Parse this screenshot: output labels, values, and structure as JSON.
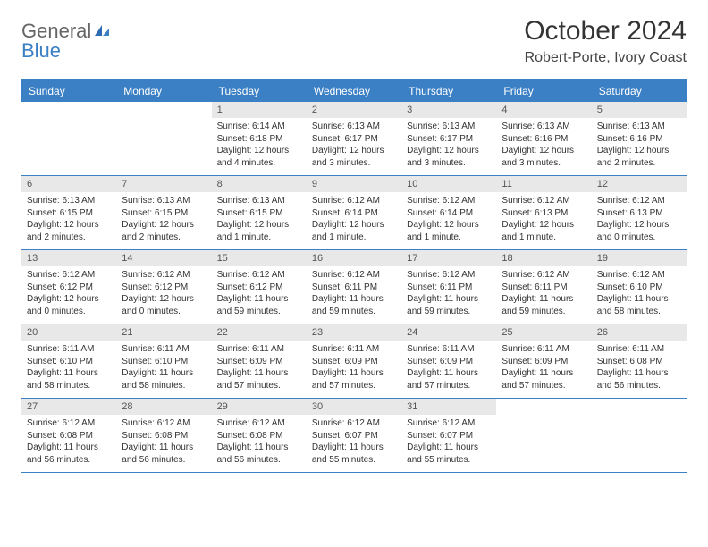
{
  "logo": {
    "general": "General",
    "blue": "Blue"
  },
  "title": "October 2024",
  "location": "Robert-Porte, Ivory Coast",
  "colors": {
    "header_bg": "#3b7fc4",
    "header_text": "#ffffff",
    "daynum_bg": "#e8e8e8",
    "border": "#3b7fc4",
    "text": "#333333",
    "logo_gray": "#666666",
    "logo_blue": "#3b7fc4",
    "background": "#ffffff"
  },
  "typography": {
    "title_fontsize": 30,
    "location_fontsize": 16,
    "dayheader_fontsize": 12,
    "daynum_fontsize": 11,
    "cell_fontsize": 10
  },
  "layout": {
    "columns": 7,
    "rows": 5
  },
  "day_names": [
    "Sunday",
    "Monday",
    "Tuesday",
    "Wednesday",
    "Thursday",
    "Friday",
    "Saturday"
  ],
  "weeks": [
    [
      null,
      null,
      {
        "n": "1",
        "sr": "Sunrise: 6:14 AM",
        "ss": "Sunset: 6:18 PM",
        "dl1": "Daylight: 12 hours",
        "dl2": "and 4 minutes."
      },
      {
        "n": "2",
        "sr": "Sunrise: 6:13 AM",
        "ss": "Sunset: 6:17 PM",
        "dl1": "Daylight: 12 hours",
        "dl2": "and 3 minutes."
      },
      {
        "n": "3",
        "sr": "Sunrise: 6:13 AM",
        "ss": "Sunset: 6:17 PM",
        "dl1": "Daylight: 12 hours",
        "dl2": "and 3 minutes."
      },
      {
        "n": "4",
        "sr": "Sunrise: 6:13 AM",
        "ss": "Sunset: 6:16 PM",
        "dl1": "Daylight: 12 hours",
        "dl2": "and 3 minutes."
      },
      {
        "n": "5",
        "sr": "Sunrise: 6:13 AM",
        "ss": "Sunset: 6:16 PM",
        "dl1": "Daylight: 12 hours",
        "dl2": "and 2 minutes."
      }
    ],
    [
      {
        "n": "6",
        "sr": "Sunrise: 6:13 AM",
        "ss": "Sunset: 6:15 PM",
        "dl1": "Daylight: 12 hours",
        "dl2": "and 2 minutes."
      },
      {
        "n": "7",
        "sr": "Sunrise: 6:13 AM",
        "ss": "Sunset: 6:15 PM",
        "dl1": "Daylight: 12 hours",
        "dl2": "and 2 minutes."
      },
      {
        "n": "8",
        "sr": "Sunrise: 6:13 AM",
        "ss": "Sunset: 6:15 PM",
        "dl1": "Daylight: 12 hours",
        "dl2": "and 1 minute."
      },
      {
        "n": "9",
        "sr": "Sunrise: 6:12 AM",
        "ss": "Sunset: 6:14 PM",
        "dl1": "Daylight: 12 hours",
        "dl2": "and 1 minute."
      },
      {
        "n": "10",
        "sr": "Sunrise: 6:12 AM",
        "ss": "Sunset: 6:14 PM",
        "dl1": "Daylight: 12 hours",
        "dl2": "and 1 minute."
      },
      {
        "n": "11",
        "sr": "Sunrise: 6:12 AM",
        "ss": "Sunset: 6:13 PM",
        "dl1": "Daylight: 12 hours",
        "dl2": "and 1 minute."
      },
      {
        "n": "12",
        "sr": "Sunrise: 6:12 AM",
        "ss": "Sunset: 6:13 PM",
        "dl1": "Daylight: 12 hours",
        "dl2": "and 0 minutes."
      }
    ],
    [
      {
        "n": "13",
        "sr": "Sunrise: 6:12 AM",
        "ss": "Sunset: 6:12 PM",
        "dl1": "Daylight: 12 hours",
        "dl2": "and 0 minutes."
      },
      {
        "n": "14",
        "sr": "Sunrise: 6:12 AM",
        "ss": "Sunset: 6:12 PM",
        "dl1": "Daylight: 12 hours",
        "dl2": "and 0 minutes."
      },
      {
        "n": "15",
        "sr": "Sunrise: 6:12 AM",
        "ss": "Sunset: 6:12 PM",
        "dl1": "Daylight: 11 hours",
        "dl2": "and 59 minutes."
      },
      {
        "n": "16",
        "sr": "Sunrise: 6:12 AM",
        "ss": "Sunset: 6:11 PM",
        "dl1": "Daylight: 11 hours",
        "dl2": "and 59 minutes."
      },
      {
        "n": "17",
        "sr": "Sunrise: 6:12 AM",
        "ss": "Sunset: 6:11 PM",
        "dl1": "Daylight: 11 hours",
        "dl2": "and 59 minutes."
      },
      {
        "n": "18",
        "sr": "Sunrise: 6:12 AM",
        "ss": "Sunset: 6:11 PM",
        "dl1": "Daylight: 11 hours",
        "dl2": "and 59 minutes."
      },
      {
        "n": "19",
        "sr": "Sunrise: 6:12 AM",
        "ss": "Sunset: 6:10 PM",
        "dl1": "Daylight: 11 hours",
        "dl2": "and 58 minutes."
      }
    ],
    [
      {
        "n": "20",
        "sr": "Sunrise: 6:11 AM",
        "ss": "Sunset: 6:10 PM",
        "dl1": "Daylight: 11 hours",
        "dl2": "and 58 minutes."
      },
      {
        "n": "21",
        "sr": "Sunrise: 6:11 AM",
        "ss": "Sunset: 6:10 PM",
        "dl1": "Daylight: 11 hours",
        "dl2": "and 58 minutes."
      },
      {
        "n": "22",
        "sr": "Sunrise: 6:11 AM",
        "ss": "Sunset: 6:09 PM",
        "dl1": "Daylight: 11 hours",
        "dl2": "and 57 minutes."
      },
      {
        "n": "23",
        "sr": "Sunrise: 6:11 AM",
        "ss": "Sunset: 6:09 PM",
        "dl1": "Daylight: 11 hours",
        "dl2": "and 57 minutes."
      },
      {
        "n": "24",
        "sr": "Sunrise: 6:11 AM",
        "ss": "Sunset: 6:09 PM",
        "dl1": "Daylight: 11 hours",
        "dl2": "and 57 minutes."
      },
      {
        "n": "25",
        "sr": "Sunrise: 6:11 AM",
        "ss": "Sunset: 6:09 PM",
        "dl1": "Daylight: 11 hours",
        "dl2": "and 57 minutes."
      },
      {
        "n": "26",
        "sr": "Sunrise: 6:11 AM",
        "ss": "Sunset: 6:08 PM",
        "dl1": "Daylight: 11 hours",
        "dl2": "and 56 minutes."
      }
    ],
    [
      {
        "n": "27",
        "sr": "Sunrise: 6:12 AM",
        "ss": "Sunset: 6:08 PM",
        "dl1": "Daylight: 11 hours",
        "dl2": "and 56 minutes."
      },
      {
        "n": "28",
        "sr": "Sunrise: 6:12 AM",
        "ss": "Sunset: 6:08 PM",
        "dl1": "Daylight: 11 hours",
        "dl2": "and 56 minutes."
      },
      {
        "n": "29",
        "sr": "Sunrise: 6:12 AM",
        "ss": "Sunset: 6:08 PM",
        "dl1": "Daylight: 11 hours",
        "dl2": "and 56 minutes."
      },
      {
        "n": "30",
        "sr": "Sunrise: 6:12 AM",
        "ss": "Sunset: 6:07 PM",
        "dl1": "Daylight: 11 hours",
        "dl2": "and 55 minutes."
      },
      {
        "n": "31",
        "sr": "Sunrise: 6:12 AM",
        "ss": "Sunset: 6:07 PM",
        "dl1": "Daylight: 11 hours",
        "dl2": "and 55 minutes."
      },
      null,
      null
    ]
  ]
}
